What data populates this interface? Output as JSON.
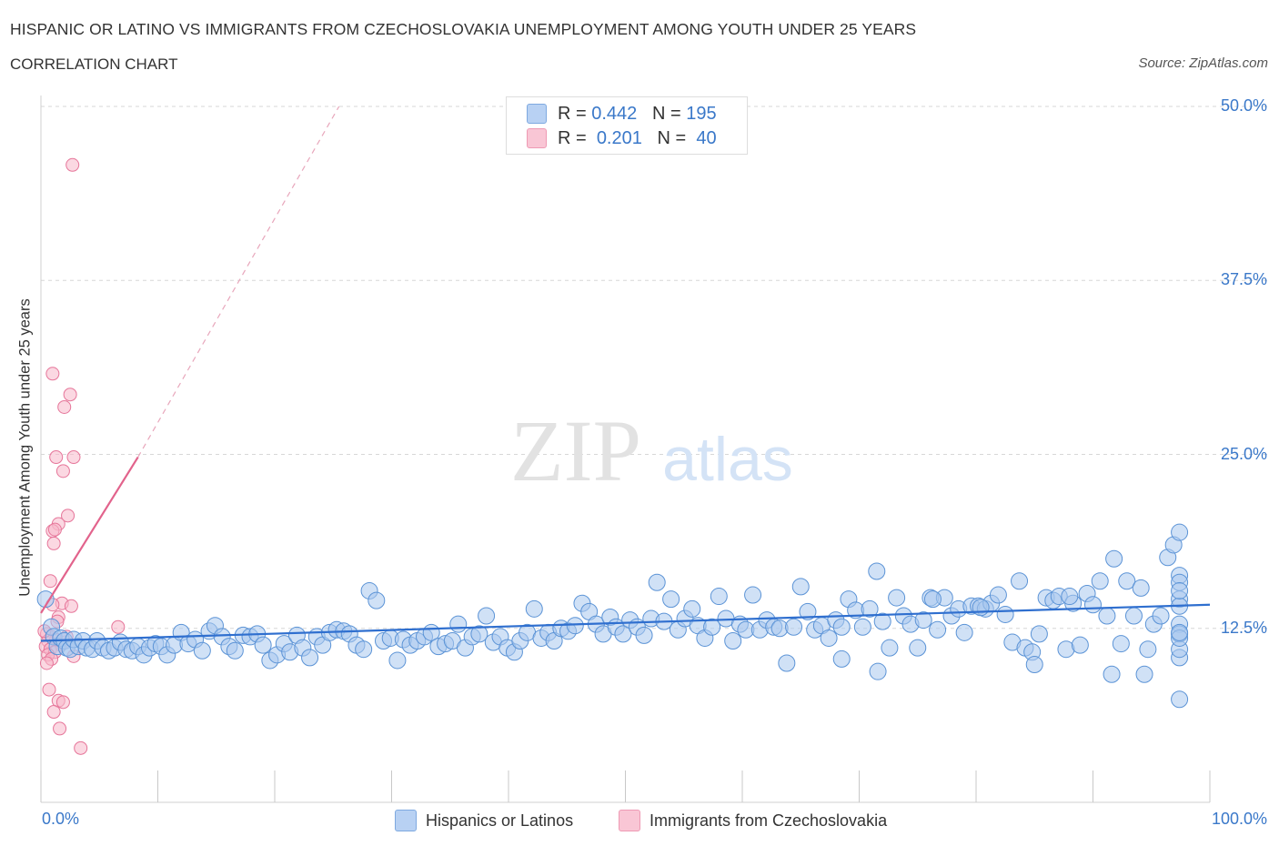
{
  "header": {
    "title": "HISPANIC OR LATINO VS IMMIGRANTS FROM CZECHOSLOVAKIA UNEMPLOYMENT AMONG YOUTH UNDER 25 YEARS",
    "subtitle": "CORRELATION CHART",
    "source": "Source: ZipAtlas.com"
  },
  "watermark": {
    "zip": "ZIP",
    "atlas": "atlas"
  },
  "legend": {
    "rows": [
      {
        "r_label": "R =",
        "r_value": "0.442",
        "n_label": "N =",
        "n_value": "195",
        "color": "#b8d1f3"
      },
      {
        "r_label": "R =",
        "r_value": "0.201",
        "n_label": "N =",
        "n_value": "40",
        "color": "#f9c6d5"
      }
    ]
  },
  "bottom_legend": [
    {
      "label": "Hispanics or Latinos",
      "color": "#b8d1f3"
    },
    {
      "label": "Immigrants from Czechoslovakia",
      "color": "#f9c6d5"
    }
  ],
  "colors": {
    "blue_fill": "#a9c8ef",
    "blue_stroke": "#5b93d6",
    "blue_line": "#2f6fcf",
    "pink_fill": "#f7b8cb",
    "pink_stroke": "#e6769a",
    "pink_line": "#e2638c",
    "tick_label": "#3a78c9",
    "grid": "#d7d7d7"
  },
  "chart_data": {
    "type": "scatter",
    "xlabel": "",
    "ylabel": "Unemployment Among Youth under 25 years",
    "xlim": [
      0,
      100
    ],
    "ylim": [
      0,
      50
    ],
    "x_tick_labels": [
      "0.0%",
      "100.0%"
    ],
    "y_ticks": [
      12.5,
      25.0,
      37.5,
      50.0
    ],
    "y_tick_labels": [
      "12.5%",
      "25.0%",
      "37.5%",
      "50.0%"
    ],
    "grid": true,
    "legend_position": "top-center",
    "series": [
      {
        "name": "Hispanics or Latinos",
        "color": "#a9c8ef",
        "trend": {
          "x": [
            0,
            100
          ],
          "y": [
            11.6,
            14.2
          ]
        },
        "points": [
          [
            0.4,
            14.6
          ],
          [
            0.9,
            12.6
          ],
          [
            1.1,
            11.9
          ],
          [
            1.4,
            11.2
          ],
          [
            1.7,
            11.8
          ],
          [
            2.0,
            11.6
          ],
          [
            2.2,
            11.1
          ],
          [
            2.5,
            11.0
          ],
          [
            2.8,
            11.7
          ],
          [
            3.2,
            11.2
          ],
          [
            3.6,
            11.6
          ],
          [
            3.9,
            11.1
          ],
          [
            4.4,
            11.0
          ],
          [
            4.8,
            11.6
          ],
          [
            5.3,
            11.1
          ],
          [
            5.8,
            10.9
          ],
          [
            6.3,
            11.1
          ],
          [
            6.8,
            11.5
          ],
          [
            7.3,
            11.0
          ],
          [
            7.8,
            10.9
          ],
          [
            8.3,
            11.2
          ],
          [
            8.8,
            10.6
          ],
          [
            9.3,
            11.1
          ],
          [
            9.8,
            11.4
          ],
          [
            10.3,
            11.2
          ],
          [
            10.8,
            10.6
          ],
          [
            11.4,
            11.3
          ],
          [
            12.0,
            12.2
          ],
          [
            12.6,
            11.4
          ],
          [
            13.2,
            11.7
          ],
          [
            13.8,
            10.9
          ],
          [
            14.4,
            12.3
          ],
          [
            14.9,
            12.7
          ],
          [
            15.5,
            11.9
          ],
          [
            16.1,
            11.2
          ],
          [
            16.6,
            10.9
          ],
          [
            17.3,
            12.0
          ],
          [
            17.9,
            11.9
          ],
          [
            18.5,
            12.1
          ],
          [
            19.0,
            11.3
          ],
          [
            19.6,
            10.2
          ],
          [
            20.2,
            10.6
          ],
          [
            20.8,
            11.4
          ],
          [
            21.3,
            10.8
          ],
          [
            21.9,
            12.0
          ],
          [
            22.4,
            11.1
          ],
          [
            23.0,
            10.4
          ],
          [
            23.6,
            11.9
          ],
          [
            24.1,
            11.3
          ],
          [
            24.7,
            12.2
          ],
          [
            25.3,
            12.4
          ],
          [
            25.9,
            12.3
          ],
          [
            26.4,
            12.1
          ],
          [
            27.0,
            11.3
          ],
          [
            27.6,
            11.0
          ],
          [
            28.1,
            15.2
          ],
          [
            28.7,
            14.5
          ],
          [
            29.3,
            11.6
          ],
          [
            29.9,
            11.8
          ],
          [
            30.5,
            10.2
          ],
          [
            31.0,
            11.7
          ],
          [
            31.6,
            11.3
          ],
          [
            32.2,
            11.6
          ],
          [
            32.8,
            11.9
          ],
          [
            33.4,
            12.2
          ],
          [
            34.0,
            11.2
          ],
          [
            34.6,
            11.4
          ],
          [
            35.2,
            11.6
          ],
          [
            35.7,
            12.8
          ],
          [
            36.3,
            11.1
          ],
          [
            36.9,
            11.9
          ],
          [
            37.5,
            12.1
          ],
          [
            38.1,
            13.4
          ],
          [
            38.7,
            11.5
          ],
          [
            39.3,
            11.9
          ],
          [
            39.9,
            11.1
          ],
          [
            40.5,
            10.8
          ],
          [
            41.0,
            11.6
          ],
          [
            41.6,
            12.2
          ],
          [
            42.2,
            13.9
          ],
          [
            42.8,
            11.8
          ],
          [
            43.4,
            12.2
          ],
          [
            43.9,
            11.6
          ],
          [
            44.5,
            12.5
          ],
          [
            45.1,
            12.3
          ],
          [
            45.7,
            12.7
          ],
          [
            46.3,
            14.3
          ],
          [
            46.9,
            13.7
          ],
          [
            47.5,
            12.8
          ],
          [
            48.1,
            12.1
          ],
          [
            48.7,
            13.3
          ],
          [
            49.2,
            12.6
          ],
          [
            49.8,
            12.1
          ],
          [
            50.4,
            13.1
          ],
          [
            51.0,
            12.6
          ],
          [
            51.6,
            12.0
          ],
          [
            52.2,
            13.2
          ],
          [
            52.7,
            15.8
          ],
          [
            53.3,
            13.0
          ],
          [
            53.9,
            14.6
          ],
          [
            54.5,
            12.4
          ],
          [
            55.1,
            13.2
          ],
          [
            55.7,
            13.9
          ],
          [
            56.2,
            12.7
          ],
          [
            56.8,
            11.8
          ],
          [
            57.4,
            12.6
          ],
          [
            58.0,
            14.8
          ],
          [
            58.6,
            13.2
          ],
          [
            59.2,
            11.6
          ],
          [
            59.8,
            12.8
          ],
          [
            60.3,
            12.4
          ],
          [
            60.9,
            14.9
          ],
          [
            61.5,
            12.4
          ],
          [
            62.1,
            13.1
          ],
          [
            62.7,
            12.6
          ],
          [
            63.2,
            12.5
          ],
          [
            63.8,
            10.0
          ],
          [
            64.4,
            12.6
          ],
          [
            65.0,
            15.5
          ],
          [
            65.6,
            13.7
          ],
          [
            66.2,
            12.4
          ],
          [
            66.8,
            12.7
          ],
          [
            67.4,
            11.8
          ],
          [
            68.0,
            13.1
          ],
          [
            68.5,
            12.6
          ],
          [
            69.1,
            14.6
          ],
          [
            69.7,
            13.8
          ],
          [
            70.3,
            12.6
          ],
          [
            70.9,
            13.9
          ],
          [
            71.5,
            16.6
          ],
          [
            72.0,
            13.0
          ],
          [
            72.6,
            11.1
          ],
          [
            73.2,
            14.7
          ],
          [
            73.8,
            13.4
          ],
          [
            74.4,
            12.8
          ],
          [
            75.0,
            11.1
          ],
          [
            75.5,
            13.1
          ],
          [
            76.1,
            14.7
          ],
          [
            76.7,
            12.4
          ],
          [
            77.3,
            14.7
          ],
          [
            77.9,
            13.4
          ],
          [
            78.5,
            13.9
          ],
          [
            79.0,
            12.2
          ],
          [
            79.6,
            14.1
          ],
          [
            80.2,
            14.1
          ],
          [
            80.8,
            13.9
          ],
          [
            81.3,
            14.3
          ],
          [
            81.9,
            14.9
          ],
          [
            82.5,
            13.5
          ],
          [
            83.1,
            11.5
          ],
          [
            83.7,
            15.9
          ],
          [
            84.2,
            11.1
          ],
          [
            84.8,
            10.8
          ],
          [
            85.4,
            12.1
          ],
          [
            86.0,
            14.7
          ],
          [
            86.6,
            14.5
          ],
          [
            87.1,
            14.8
          ],
          [
            87.7,
            11.0
          ],
          [
            88.3,
            14.3
          ],
          [
            88.9,
            11.3
          ],
          [
            89.5,
            15.0
          ],
          [
            90.0,
            14.2
          ],
          [
            90.6,
            15.9
          ],
          [
            91.2,
            13.4
          ],
          [
            91.8,
            17.5
          ],
          [
            92.4,
            11.4
          ],
          [
            92.9,
            15.9
          ],
          [
            93.5,
            13.4
          ],
          [
            94.1,
            15.4
          ],
          [
            94.7,
            11.0
          ],
          [
            95.2,
            12.8
          ],
          [
            95.8,
            13.4
          ],
          [
            96.4,
            17.6
          ],
          [
            96.9,
            18.5
          ],
          [
            97.5,
            14.6
          ],
          [
            98.1,
            12.8
          ],
          [
            98.7,
            10.4
          ],
          [
            99.2,
            16.3
          ],
          [
            99.8,
            15.8
          ],
          [
            100.4,
            14.1
          ],
          [
            101.0,
            12.1
          ],
          [
            101.6,
            11.0
          ],
          [
            102.1,
            11.8
          ],
          [
            102.7,
            15.2
          ],
          [
            103.3,
            19.4
          ],
          [
            94.4,
            9.2
          ],
          [
            97.9,
            12.2
          ],
          [
            98.3,
            7.4
          ],
          [
            68.5,
            10.3
          ],
          [
            71.6,
            9.4
          ],
          [
            85.0,
            9.9
          ],
          [
            91.6,
            9.2
          ],
          [
            76.3,
            14.6
          ],
          [
            80.4,
            14.0
          ],
          [
            88.0,
            14.8
          ]
        ]
      },
      {
        "name": "Immigrants from Czechoslovakia",
        "color": "#f7b8cb",
        "trend": {
          "x": [
            0,
            8.3
          ],
          "y": [
            13.6,
            24.8
          ],
          "extended": {
            "x": [
              8.3,
              25.5
            ],
            "y": [
              24.8,
              50.0
            ]
          }
        },
        "points": [
          [
            2.7,
            45.8
          ],
          [
            1.0,
            30.8
          ],
          [
            2.5,
            29.3
          ],
          [
            2.0,
            28.4
          ],
          [
            1.3,
            24.8
          ],
          [
            2.8,
            24.8
          ],
          [
            1.9,
            23.8
          ],
          [
            2.3,
            20.6
          ],
          [
            1.5,
            20.0
          ],
          [
            1.0,
            19.5
          ],
          [
            1.2,
            19.6
          ],
          [
            1.1,
            18.6
          ],
          [
            0.8,
            15.9
          ],
          [
            1.8,
            14.3
          ],
          [
            2.6,
            14.1
          ],
          [
            1.0,
            14.2
          ],
          [
            1.5,
            13.3
          ],
          [
            0.5,
            12.1
          ],
          [
            0.9,
            11.9
          ],
          [
            1.3,
            11.7
          ],
          [
            0.6,
            11.6
          ],
          [
            1.7,
            11.3
          ],
          [
            2.1,
            11.5
          ],
          [
            0.4,
            11.2
          ],
          [
            0.8,
            11.0
          ],
          [
            1.2,
            10.8
          ],
          [
            0.6,
            10.6
          ],
          [
            2.8,
            10.5
          ],
          [
            0.9,
            10.3
          ],
          [
            0.5,
            10.0
          ],
          [
            6.6,
            12.6
          ],
          [
            0.7,
            8.1
          ],
          [
            1.5,
            7.3
          ],
          [
            1.9,
            7.2
          ],
          [
            1.1,
            6.5
          ],
          [
            1.6,
            5.3
          ],
          [
            3.4,
            3.9
          ],
          [
            0.3,
            12.3
          ],
          [
            2.2,
            11.9
          ],
          [
            1.4,
            13.0
          ]
        ]
      }
    ]
  }
}
